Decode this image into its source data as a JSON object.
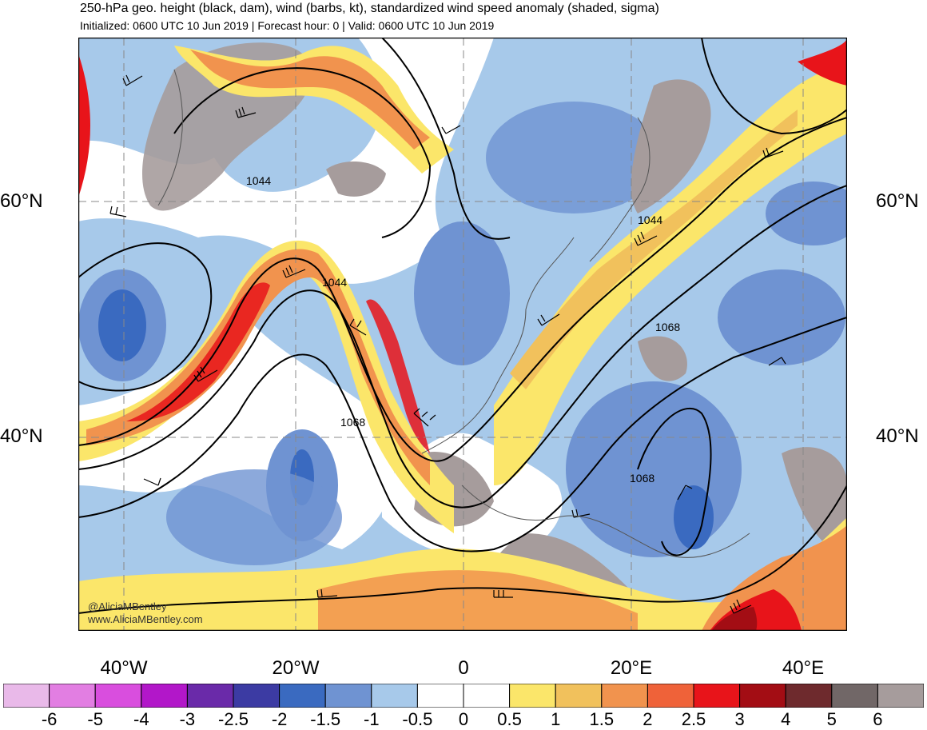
{
  "header": {
    "title": "250-hPa geo. height (black, dam), wind (barbs, kt), standardized wind speed anomaly (shaded, sigma)",
    "subtitle": "Initialized: 0600 UTC 10 Jun 2019 | Forecast hour: 0 | Valid: 0600 UTC 10 Jun 2019"
  },
  "map": {
    "lat_labels": [
      "60°N",
      "40°N"
    ],
    "lon_labels": [
      "40°W",
      "20°W",
      "0",
      "20°E",
      "40°E"
    ],
    "contour_labels": [
      "1044",
      "1044",
      "1044",
      "1068",
      "1068",
      "1068"
    ],
    "credits": [
      "@AliciaMBentley",
      "www.AliciaMBentley.com"
    ]
  },
  "colorbar": {
    "colors": [
      "#e9b9e9",
      "#e27ee2",
      "#d94ede",
      "#b217c9",
      "#6a2aa9",
      "#3c3ba3",
      "#3a6ac0",
      "#6f93d2",
      "#a7c9ea",
      "#ffffff",
      "#ffffff",
      "#fbe66a",
      "#f1c15c",
      "#f1934e",
      "#ef6239",
      "#e8141a",
      "#a30d14",
      "#6e2a2d",
      "#716767",
      "#a69c9c"
    ],
    "labels": [
      "-6",
      "-5",
      "-4",
      "-3",
      "-2.5",
      "-2",
      "-1.5",
      "-1",
      "-0.5",
      "0",
      "0.5",
      "1",
      "1.5",
      "2",
      "2.5",
      "3",
      "4",
      "5",
      "6"
    ]
  }
}
